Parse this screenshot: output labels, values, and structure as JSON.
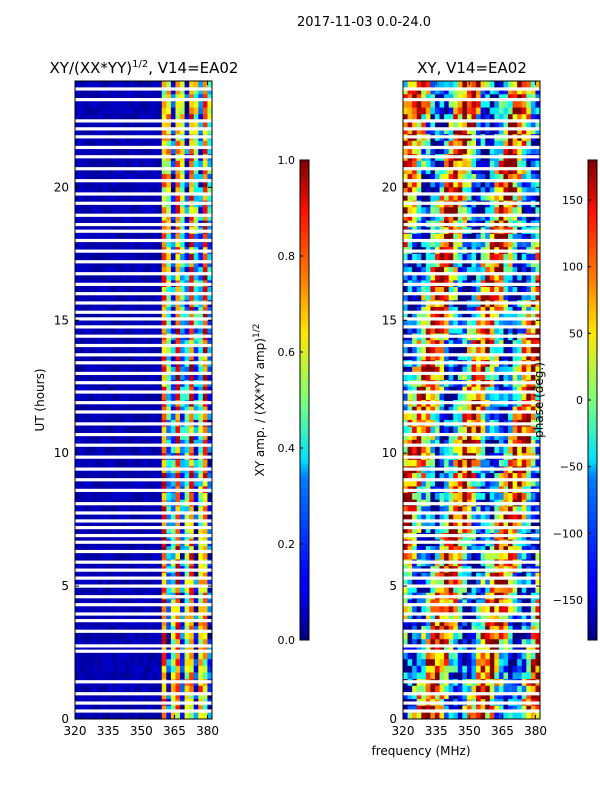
{
  "suptitle": "2017-11-03 0.0-24.0",
  "chart_data": [
    {
      "type": "heatmap",
      "title_main": "XY/(XX*YY)",
      "title_exp": "1/2",
      "title_rest": ", V14=EA02",
      "xlabel": "",
      "ylabel": "UT (hours)",
      "xlim": [
        320,
        382
      ],
      "ylim": [
        0,
        24
      ],
      "xticks": [
        320,
        335,
        350,
        365,
        380
      ],
      "yticks": [
        0,
        5,
        10,
        15,
        20
      ],
      "signal_band_mhz": [
        360,
        379
      ],
      "colorbar": {
        "label_main": "XY amp. / (XX*YY amp)",
        "label_exp": "1/2",
        "range": [
          0.0,
          1.0
        ],
        "ticks": [
          "0.0",
          "0.2",
          "0.4",
          "0.6",
          "0.8",
          "1.0"
        ]
      }
    },
    {
      "type": "heatmap",
      "title_main": "XY, V14=EA02",
      "xlabel": "frequency (MHz)",
      "ylabel": "",
      "xlim": [
        320,
        382
      ],
      "ylim": [
        0,
        24
      ],
      "xticks": [
        320,
        335,
        350,
        365,
        380
      ],
      "yticks": [
        0,
        5,
        10,
        15,
        20
      ],
      "colorbar": {
        "label_main": "phase (deg.)",
        "range": [
          -180,
          180
        ],
        "ticks": [
          "−150",
          "−100",
          "−50",
          "0",
          "50",
          "100",
          "150"
        ]
      }
    }
  ],
  "flagged_hours": [
    0.3,
    0.6,
    0.95,
    1.4,
    2.55,
    2.75,
    3.3,
    3.7,
    3.95,
    4.3,
    4.6,
    5.0,
    5.3,
    5.6,
    5.9,
    6.3,
    6.65,
    6.9,
    7.2,
    7.45,
    7.75,
    8.1,
    8.6,
    9.0,
    9.4,
    9.85,
    10.3,
    10.7,
    11.1,
    11.55,
    11.9,
    12.3,
    12.65,
    13.0,
    13.4,
    13.7,
    14.05,
    14.4,
    14.75,
    15.05,
    15.3,
    15.65,
    16.0,
    16.35,
    16.75,
    17.2,
    17.6,
    18.0,
    18.35,
    18.6,
    18.95,
    19.4,
    19.75,
    20.25,
    20.7,
    21.15,
    21.5,
    21.9,
    22.2,
    22.5,
    23.3,
    23.7
  ]
}
